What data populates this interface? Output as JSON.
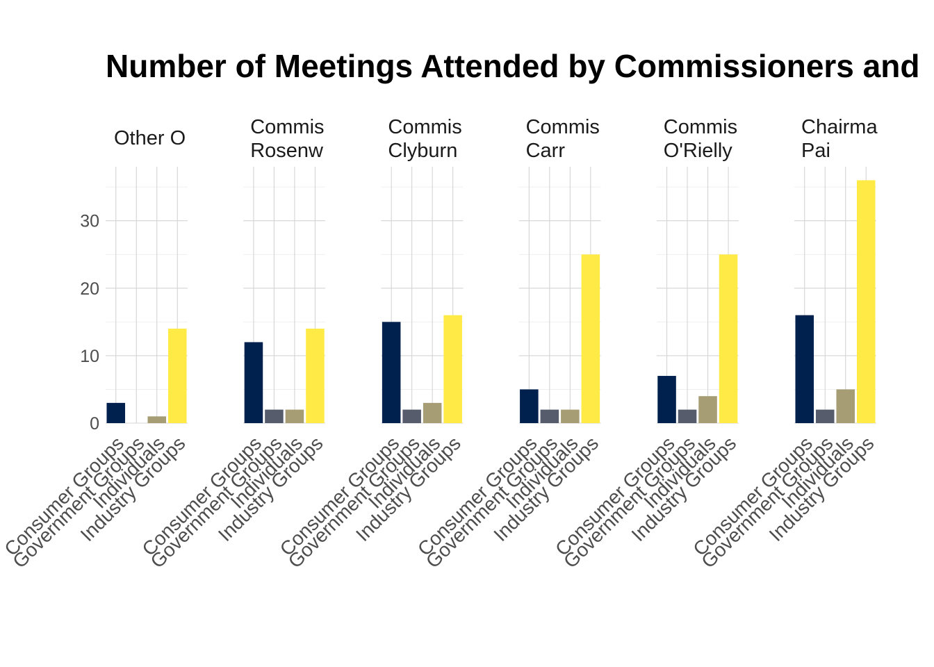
{
  "chart_data": {
    "type": "bar",
    "title": "Number of Meetings Attended by Commissioners and",
    "xlabel": "",
    "ylabel": "",
    "ylim": [
      0,
      38
    ],
    "y_ticks": [
      0,
      10,
      20,
      30
    ],
    "grid": true,
    "legend": "none",
    "categories": [
      "Consumer Groups",
      "Government Groups",
      "Individuals",
      "Industry Groups"
    ],
    "colors": {
      "Consumer Groups": "#00204D",
      "Government Groups": "#575C6D",
      "Individuals": "#A69D75",
      "Industry Groups": "#FFEA46"
    },
    "panels": [
      {
        "strip": [
          "Other O"
        ],
        "values": [
          3,
          0,
          1,
          14
        ]
      },
      {
        "strip": [
          "Commis",
          "Rosenw"
        ],
        "values": [
          12,
          2,
          2,
          14
        ]
      },
      {
        "strip": [
          "Commis",
          "Clyburn"
        ],
        "values": [
          15,
          2,
          3,
          16
        ]
      },
      {
        "strip": [
          "Commis",
          "Carr"
        ],
        "values": [
          5,
          2,
          2,
          25
        ]
      },
      {
        "strip": [
          "Commis",
          "O'Rielly"
        ],
        "values": [
          7,
          2,
          4,
          25
        ]
      },
      {
        "strip": [
          "Chairma",
          "Pai"
        ],
        "values": [
          16,
          2,
          5,
          36
        ]
      }
    ]
  }
}
